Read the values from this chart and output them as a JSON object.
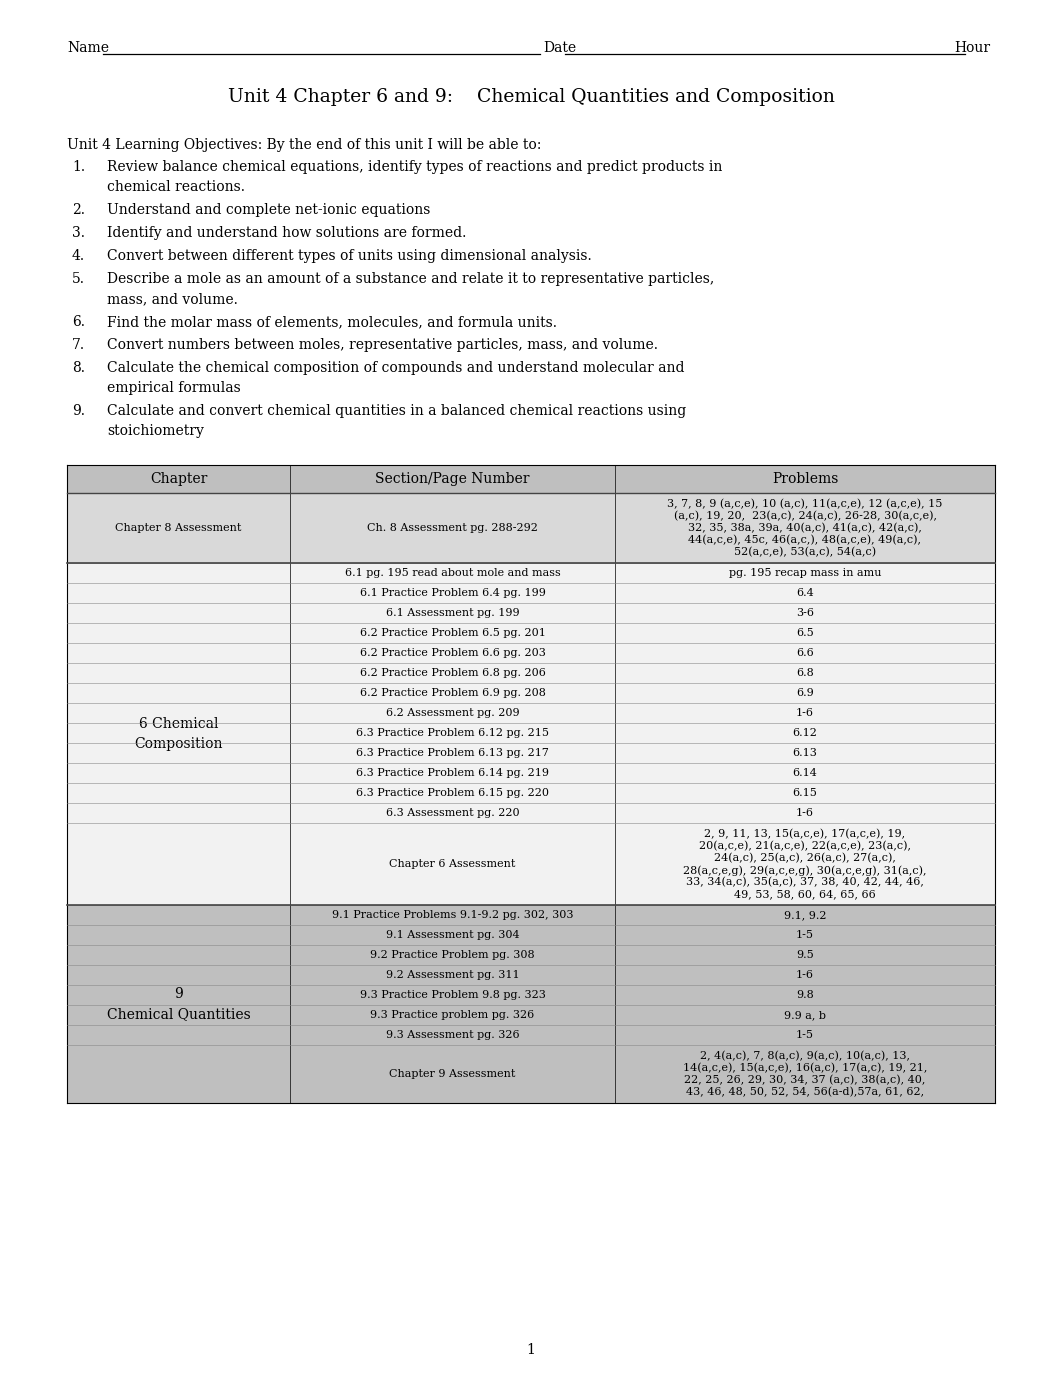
{
  "title": "Unit 4 Chapter 6 and 9:    Chemical Quantities and Composition",
  "objectives_header": "Unit 4 Learning Objectives: By the end of this unit I will be able to:",
  "objectives": [
    [
      "Review balance chemical equations, identify types of reactions and predict products in",
      "chemical reactions."
    ],
    [
      "Understand and complete net-ionic equations"
    ],
    [
      "Identify and understand how solutions are formed."
    ],
    [
      "Convert between different types of units using dimensional analysis."
    ],
    [
      "Describe a mole as an amount of a substance and relate it to representative particles,",
      "mass, and volume."
    ],
    [
      "Find the molar mass of elements, molecules, and formula units."
    ],
    [
      "Convert numbers between moles, representative particles, mass, and volume."
    ],
    [
      "Calculate the chemical composition of compounds and understand molecular and",
      "empirical formulas"
    ],
    [
      "Calculate and convert chemical quantities in a balanced chemical reactions using",
      "stoichiometry"
    ]
  ],
  "table_headers": [
    "Chapter",
    "Section/Page Number",
    "Problems"
  ],
  "table_rows": [
    {
      "chapter": "Chapter 8 Assessment",
      "section": "Ch. 8 Assessment pg. 288-292",
      "problems": "3, 7, 8, 9 (a,c,e), 10 (a,c), 11(a,c,e), 12 (a,c,e), 15\n(a,c), 19, 20,  23(a,c), 24(a,c), 26-28, 30(a,c,e),\n32, 35, 38a, 39a, 40(a,c), 41(a,c), 42(a,c),\n44(a,c,e), 45c, 46(a,c,), 48(a,c,e), 49(a,c),\n52(a,c,e), 53(a,c), 54(a,c)",
      "bg": "#d9d9d9"
    },
    {
      "chapter": "",
      "section": "6.1 pg. 195 read about mole and mass",
      "problems": "pg. 195 recap mass in amu",
      "bg": "#f2f2f2"
    },
    {
      "chapter": "",
      "section": "6.1 Practice Problem 6.4 pg. 199",
      "problems": "6.4",
      "bg": "#f2f2f2"
    },
    {
      "chapter": "",
      "section": "6.1 Assessment pg. 199",
      "problems": "3-6",
      "bg": "#f2f2f2"
    },
    {
      "chapter": "",
      "section": "6.2 Practice Problem 6.5 pg. 201",
      "problems": "6.5",
      "bg": "#f2f2f2"
    },
    {
      "chapter": "",
      "section": "6.2 Practice Problem 6.6 pg. 203",
      "problems": "6.6",
      "bg": "#f2f2f2"
    },
    {
      "chapter": "",
      "section": "6.2 Practice Problem 6.8 pg. 206",
      "problems": "6.8",
      "bg": "#f2f2f2"
    },
    {
      "chapter": "",
      "section": "6.2 Practice Problem 6.9 pg. 208",
      "problems": "6.9",
      "bg": "#f2f2f2"
    },
    {
      "chapter": "",
      "section": "6.2 Assessment pg. 209",
      "problems": "1-6",
      "bg": "#f2f2f2"
    },
    {
      "chapter": "",
      "section": "6.3 Practice Problem 6.12 pg. 215",
      "problems": "6.12",
      "bg": "#f2f2f2"
    },
    {
      "chapter": "",
      "section": "6.3 Practice Problem 6.13 pg. 217",
      "problems": "6.13",
      "bg": "#f2f2f2"
    },
    {
      "chapter": "",
      "section": "6.3 Practice Problem 6.14 pg. 219",
      "problems": "6.14",
      "bg": "#f2f2f2"
    },
    {
      "chapter": "",
      "section": "6.3 Practice Problem 6.15 pg. 220",
      "problems": "6.15",
      "bg": "#f2f2f2"
    },
    {
      "chapter": "",
      "section": "6.3 Assessment pg. 220",
      "problems": "1-6",
      "bg": "#f2f2f2"
    },
    {
      "chapter": "",
      "section": "Chapter 6 Assessment",
      "problems": "2, 9, 11, 13, 15(a,c,e), 17(a,c,e), 19,\n20(a,c,e), 21(a,c,e), 22(a,c,e), 23(a,c),\n24(a,c), 25(a,c), 26(a,c), 27(a,c),\n28(a,c,e,g), 29(a,c,e,g), 30(a,c,e,g), 31(a,c),\n33, 34(a,c), 35(a,c), 37, 38, 40, 42, 44, 46,\n49, 53, 58, 60, 64, 65, 66",
      "bg": "#f2f2f2"
    },
    {
      "chapter": "",
      "section": "9.1 Practice Problems 9.1-9.2 pg. 302, 303",
      "problems": "9.1, 9.2",
      "bg": "#bfbfbf"
    },
    {
      "chapter": "",
      "section": "9.1 Assessment pg. 304",
      "problems": "1-5",
      "bg": "#bfbfbf"
    },
    {
      "chapter": "",
      "section": "9.2 Practice Problem pg. 308",
      "problems": "9.5",
      "bg": "#bfbfbf"
    },
    {
      "chapter": "",
      "section": "9.2 Assessment pg. 311",
      "problems": "1-6",
      "bg": "#bfbfbf"
    },
    {
      "chapter": "",
      "section": "9.3 Practice Problem 9.8 pg. 323",
      "problems": "9.8",
      "bg": "#bfbfbf"
    },
    {
      "chapter": "",
      "section": "9.3 Practice problem pg. 326",
      "problems": "9.9 a, b",
      "bg": "#bfbfbf"
    },
    {
      "chapter": "",
      "section": "9.3 Assessment pg. 326",
      "problems": "1-5",
      "bg": "#bfbfbf"
    },
    {
      "chapter": "",
      "section": "Chapter 9 Assessment",
      "problems": "2, 4(a,c), 7, 8(a,c), 9(a,c), 10(a,c), 13,\n14(a,c,e), 15(a,c,e), 16(a,c), 17(a,c), 19, 21,\n22, 25, 26, 29, 30, 34, 37 (a,c), 38(a,c), 40,\n43, 46, 48, 50, 52, 54, 56(a-d),57a, 61, 62,",
      "bg": "#bfbfbf"
    }
  ],
  "ch8_rows": [
    0
  ],
  "ch6_rows": [
    1,
    14
  ],
  "ch9_rows": [
    15,
    22
  ],
  "ch6_label": "6 Chemical\nComposition",
  "ch9_label": "9\nChemical Quantities",
  "page_number": "1",
  "bg_color": "#ffffff"
}
